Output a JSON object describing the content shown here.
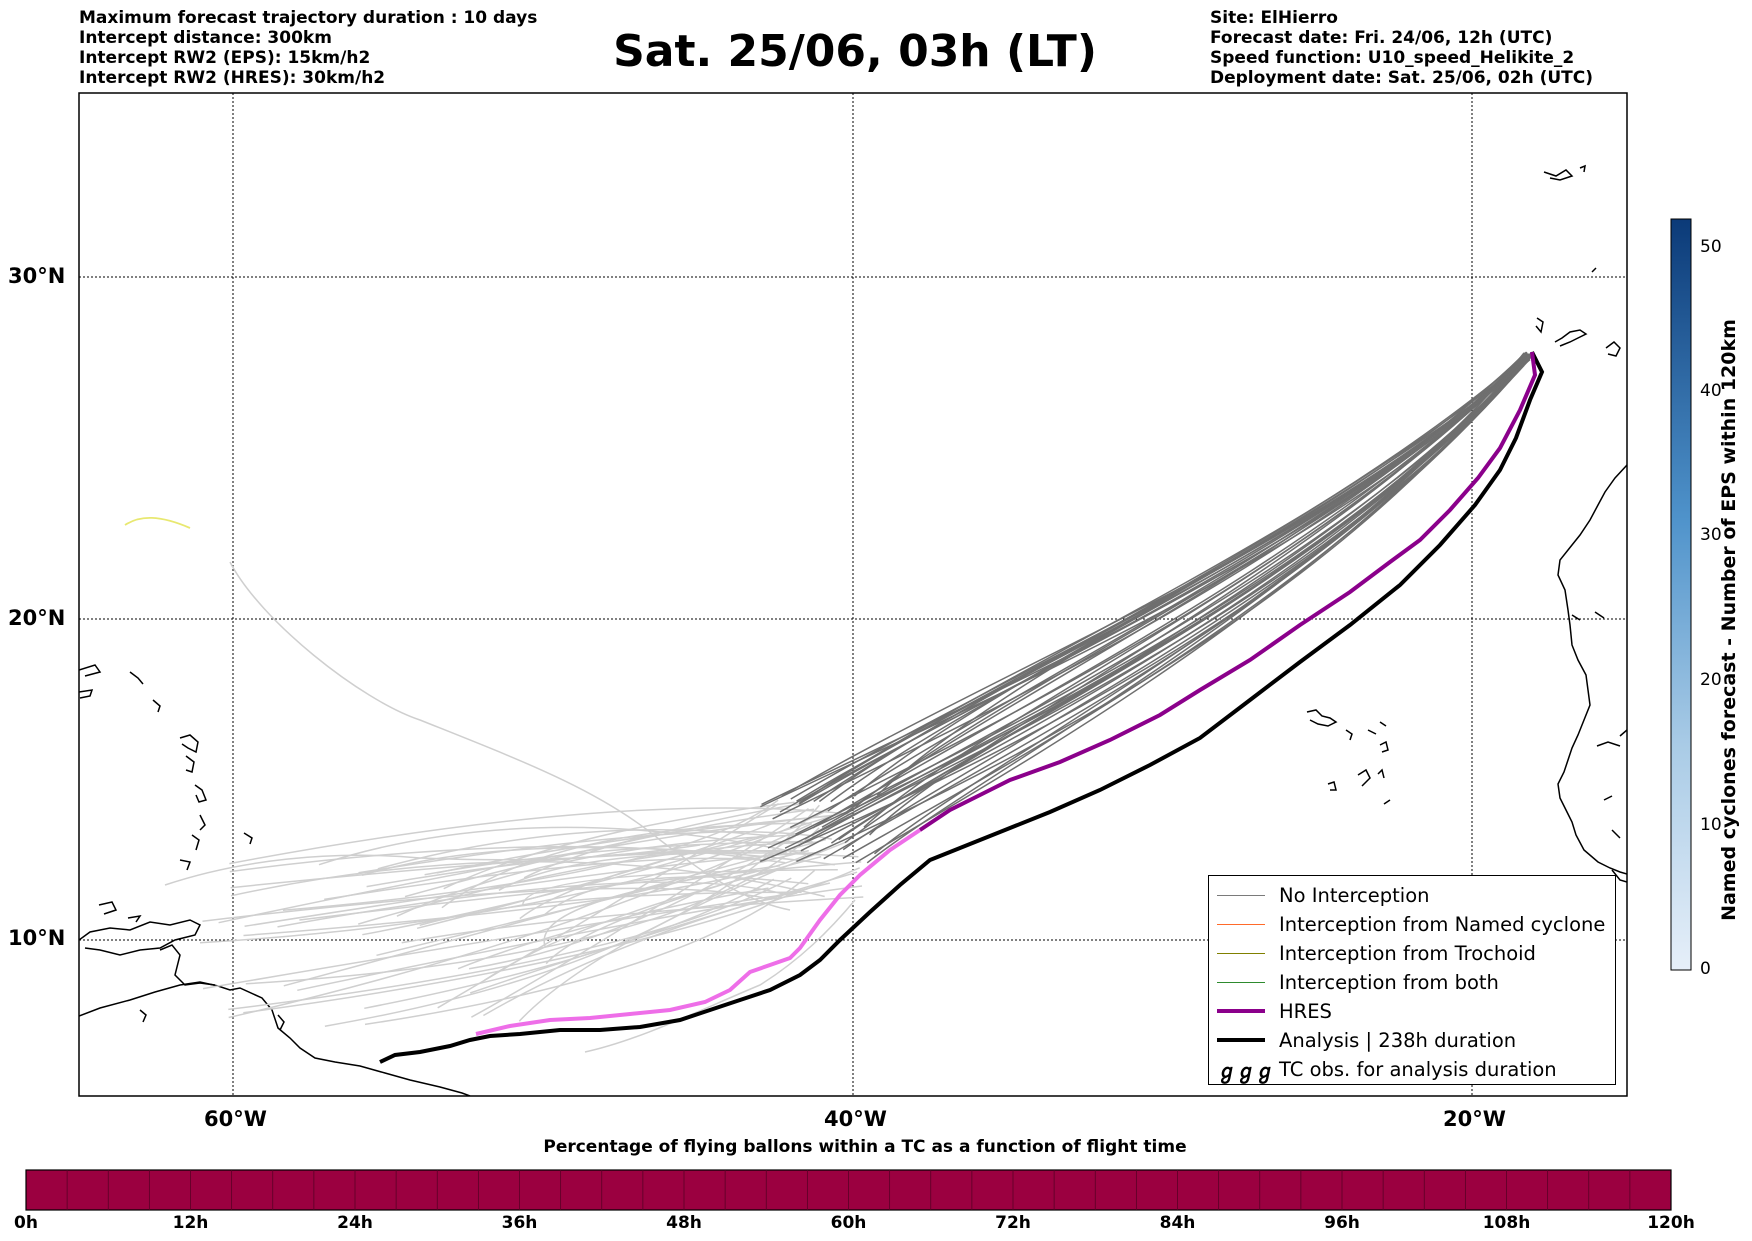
{
  "header": {
    "left_lines": [
      "Maximum forecast trajectory duration : 10 days",
      "Intercept distance: 300km",
      "Intercept RW2 (EPS):  15km/h2",
      "Intercept RW2 (HRES): 30km/h2"
    ],
    "title": "Sat. 25/06, 03h (LT)",
    "right_lines": [
      "Site: ElHierro",
      "Forecast date: Fri. 24/06, 12h (UTC)",
      "Speed function: U10_speed_Helikite_2",
      "Deployment date: Sat. 25/06, 02h (UTC)"
    ]
  },
  "map": {
    "lon_labels": [
      "60°W",
      "40°W",
      "20°W"
    ],
    "lat_labels": [
      "30°N",
      "20°N",
      "10°N"
    ],
    "grid": true
  },
  "legend": {
    "items": [
      {
        "label": "No Interception",
        "color": "#7a7a7a"
      },
      {
        "label": "Interception from Named cyclone",
        "color": "#ff6a2a"
      },
      {
        "label": "Interception from Trochoid",
        "color": "#808000"
      },
      {
        "label": "Interception from both",
        "color": "#2e8b2e"
      },
      {
        "label": "HRES",
        "color": "#8b008b"
      },
      {
        "label": "Analysis | 238h duration",
        "color": "#000000"
      },
      {
        "label": "TC obs. for analysis duration",
        "icon": "cyclone-symbols",
        "glyph": "ℊℊℊ"
      }
    ]
  },
  "colorbar_vertical": {
    "label": "Named cyclones forecast - Number of EPS within 120km",
    "ticks": [
      "0",
      "10",
      "20",
      "30",
      "40",
      "50"
    ],
    "color_low": "#e6eff9",
    "color_high": "#0b3a78"
  },
  "colorbar_horizontal": {
    "title": "Percentage of flying ballons within a TC as a function of flight time",
    "ticks": [
      "0h",
      "12h",
      "24h",
      "36h",
      "48h",
      "60h",
      "72h",
      "84h",
      "96h",
      "108h",
      "120h"
    ],
    "fill_color": "#9b0040"
  },
  "colors": {
    "no_interception": "#7a7a7a",
    "old_tracks": "#cfcfcf",
    "hres_early": "#8b008b",
    "hres_late": "#ee6ee8",
    "analysis": "#000000",
    "outlier_track": "#e8e870"
  }
}
